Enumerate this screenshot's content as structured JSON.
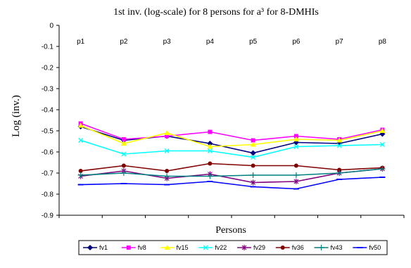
{
  "chart_data": {
    "type": "line",
    "title": "1st inv. (log-scale) for 8 persons for a³ for 8-DMHIs",
    "xlabel": "Persons",
    "ylabel": "Log (inv.)",
    "categories": [
      "p1",
      "p2",
      "p3",
      "p4",
      "p5",
      "p6",
      "p7",
      "p8"
    ],
    "ylim": [
      -0.9,
      0
    ],
    "yticks": [
      0,
      -0.1,
      -0.2,
      -0.3,
      -0.4,
      -0.5,
      -0.6,
      -0.7,
      -0.8,
      -0.9
    ],
    "ytick_labels": [
      "0",
      "-0.1",
      "-0.2",
      "-0.3",
      "-0.4",
      "-0.5",
      "-0.6",
      "-0.7",
      "-0.8",
      "-0.9"
    ],
    "grid": false,
    "legend_position": "bottom",
    "series": [
      {
        "name": "fv1",
        "color": "#000080",
        "marker": "diamond",
        "values": [
          -0.48,
          -0.545,
          -0.525,
          -0.56,
          -0.605,
          -0.555,
          -0.56,
          -0.515
        ]
      },
      {
        "name": "fv8",
        "color": "#ff00ff",
        "marker": "square",
        "values": [
          -0.465,
          -0.54,
          -0.525,
          -0.505,
          -0.545,
          -0.525,
          -0.54,
          -0.495
        ]
      },
      {
        "name": "fv15",
        "color": "#ffff00",
        "marker": "triangle",
        "values": [
          -0.475,
          -0.56,
          -0.51,
          -0.575,
          -0.565,
          -0.54,
          -0.545,
          -0.5
        ]
      },
      {
        "name": "fv22",
        "color": "#00ffff",
        "marker": "x",
        "values": [
          -0.545,
          -0.61,
          -0.595,
          -0.595,
          -0.625,
          -0.575,
          -0.57,
          -0.565
        ]
      },
      {
        "name": "fv29",
        "color": "#800080",
        "marker": "star",
        "values": [
          -0.715,
          -0.69,
          -0.725,
          -0.705,
          -0.745,
          -0.74,
          -0.7,
          -0.68
        ]
      },
      {
        "name": "fv36",
        "color": "#800000",
        "marker": "circle",
        "values": [
          -0.69,
          -0.665,
          -0.69,
          -0.655,
          -0.665,
          -0.665,
          -0.685,
          -0.675
        ]
      },
      {
        "name": "fv43",
        "color": "#008080",
        "marker": "plus",
        "values": [
          -0.71,
          -0.7,
          -0.715,
          -0.715,
          -0.71,
          -0.71,
          -0.7,
          -0.68
        ]
      },
      {
        "name": "fv50",
        "color": "#0000ff",
        "marker": "dash",
        "values": [
          -0.755,
          -0.75,
          -0.755,
          -0.74,
          -0.765,
          -0.775,
          -0.73,
          -0.72
        ]
      }
    ]
  }
}
